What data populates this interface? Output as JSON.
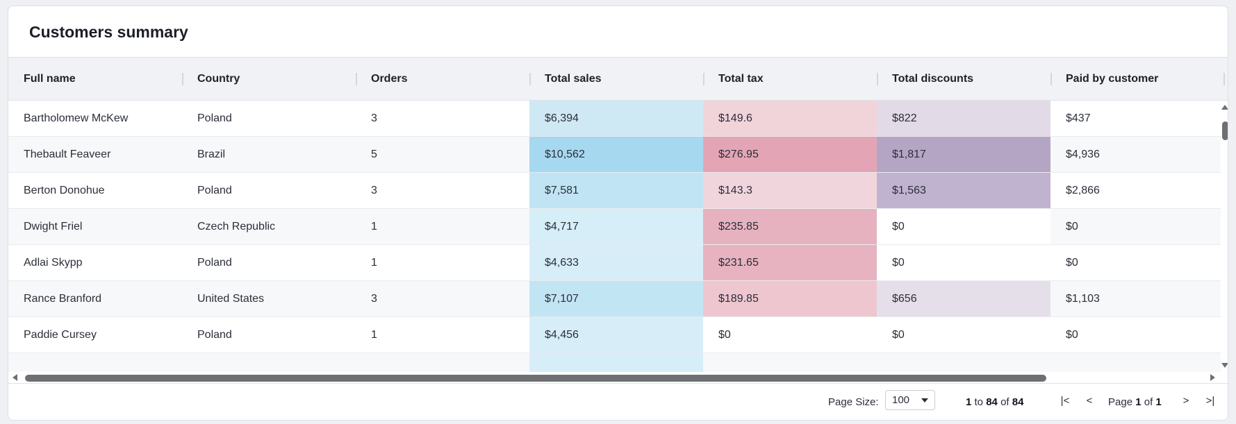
{
  "title": "Customers summary",
  "columns": [
    "Full name",
    "Country",
    "Orders",
    "Total sales",
    "Total tax",
    "Total discounts",
    "Paid by customer"
  ],
  "rows": [
    [
      "Bartholomew McKew",
      "Poland",
      "3",
      "$6,394",
      "$149.6",
      "$822",
      "$437"
    ],
    [
      "Thebault Feaveer",
      "Brazil",
      "5",
      "$10,562",
      "$276.95",
      "$1,817",
      "$4,936"
    ],
    [
      "Berton Donohue",
      "Poland",
      "3",
      "$7,581",
      "$143.3",
      "$1,563",
      "$2,866"
    ],
    [
      "Dwight Friel",
      "Czech Republic",
      "1",
      "$4,717",
      "$235.85",
      "$0",
      "$0"
    ],
    [
      "Adlai Skypp",
      "Poland",
      "1",
      "$4,633",
      "$231.65",
      "$0",
      "$0"
    ],
    [
      "Rance Branford",
      "United States",
      "3",
      "$7,107",
      "$189.85",
      "$656",
      "$1,103"
    ],
    [
      "Paddie Cursey",
      "Poland",
      "1",
      "$4,456",
      "$0",
      "$0",
      "$0"
    ]
  ],
  "heat_colors": {
    "sales": [
      "#cfe9f4",
      "#a6d8ef",
      "#c0e4f3",
      "#d6eef8",
      "#d7eef8",
      "#c2e5f4",
      "#d7eef8"
    ],
    "tax": [
      "#f1d3da",
      "#e3a5b5",
      "#f1d5dc",
      "#e6b2bf",
      "#e7b3c0",
      "#edc6d0",
      "#ffffff"
    ],
    "discounts": [
      "#e2dae6",
      "#b5a5c4",
      "#c0b3cf",
      "#ffffff",
      "#ffffff",
      "#e5dfea",
      "#ffffff"
    ]
  },
  "footer": {
    "page_size_label": "Page Size:",
    "page_size_value": "100",
    "range_from": "1",
    "range_to_word": "to",
    "range_to": "84",
    "range_of_word": "of",
    "range_total": "84",
    "page_word": "Page",
    "page_current": "1",
    "page_of_word": "of",
    "page_total": "1",
    "first_icon": "|<",
    "prev_icon": "<",
    "next_icon": ">",
    "last_icon": ">|"
  }
}
